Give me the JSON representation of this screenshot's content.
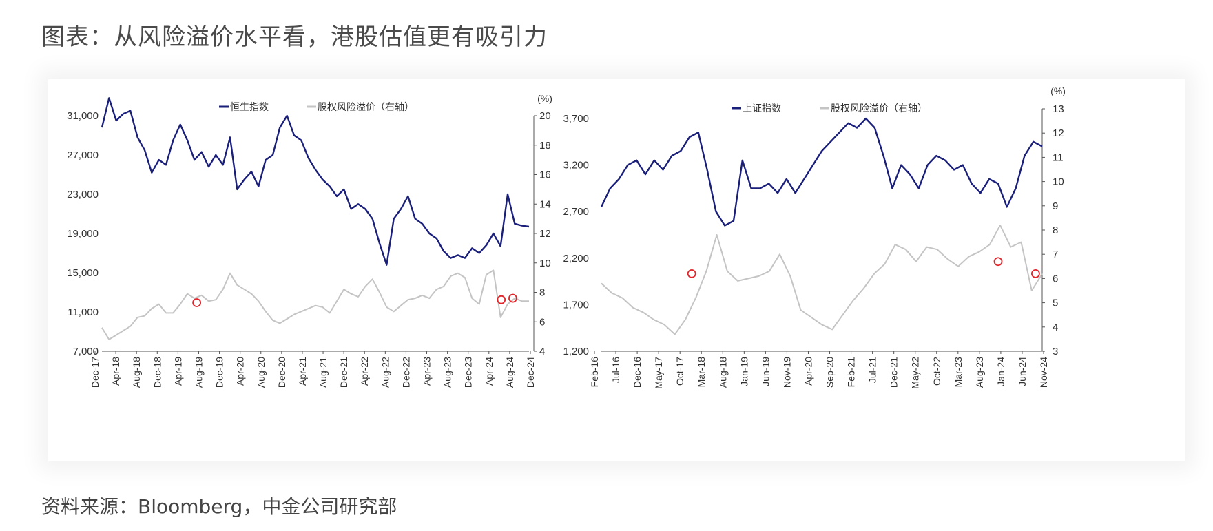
{
  "title": "图表：从风险溢价水平看，港股估值更有吸引力",
  "source": "资料来源：Bloomberg，中金公司研究部",
  "colors": {
    "index": "#1a1f7a",
    "erp": "#c4c4c4",
    "marker": "#e0262b"
  },
  "chart_data": [
    {
      "type": "line",
      "title": "",
      "x_ticks": [
        "Dec-17",
        "Apr-18",
        "Aug-18",
        "Dec-18",
        "Apr-19",
        "Aug-19",
        "Dec-19",
        "Apr-20",
        "Aug-20",
        "Dec-20",
        "Apr-21",
        "Aug-21",
        "Dec-21",
        "Apr-22",
        "Aug-22",
        "Dec-22",
        "Apr-23",
        "Aug-23",
        "Dec-23",
        "Apr-24",
        "Aug-24",
        "Dec-24"
      ],
      "y_left": {
        "range": [
          7000,
          31000
        ],
        "ticks": [
          "7,000",
          "11,000",
          "15,000",
          "19,000",
          "23,000",
          "27,000",
          "31,000"
        ]
      },
      "y_right": {
        "unit": "(%)",
        "range": [
          4,
          20
        ],
        "ticks": [
          "4",
          "6",
          "8",
          "10",
          "12",
          "14",
          "16",
          "18",
          "20"
        ]
      },
      "legend": {
        "placement": "top",
        "entries": [
          "恒生指数",
          "股权风险溢价（右轴）"
        ]
      },
      "series": [
        {
          "name": "恒生指数",
          "axis": "left",
          "color": "#1a1f7a",
          "values": [
            29800,
            32800,
            30500,
            31200,
            31500,
            28800,
            27500,
            25200,
            26500,
            26000,
            28500,
            30100,
            28500,
            26500,
            27300,
            25800,
            27000,
            26000,
            28800,
            23500,
            24500,
            25300,
            23800,
            26500,
            27000,
            29800,
            31000,
            29000,
            28500,
            26700,
            25500,
            24500,
            23800,
            22800,
            23500,
            21500,
            22000,
            21500,
            20500,
            18000,
            15800,
            20500,
            21500,
            22800,
            20500,
            20000,
            19000,
            18500,
            17200,
            16500,
            16800,
            16500,
            17500,
            17000,
            17800,
            19000,
            17700,
            23000,
            20000,
            19800,
            19700
          ]
        },
        {
          "name": "股权风险溢价（右轴）",
          "axis": "right",
          "color": "#c4c4c4",
          "values": [
            5.6,
            4.8,
            5.1,
            5.4,
            5.7,
            6.3,
            6.4,
            6.9,
            7.2,
            6.6,
            6.6,
            7.2,
            7.9,
            7.6,
            7.8,
            7.4,
            7.5,
            8.2,
            9.3,
            8.5,
            8.2,
            7.9,
            7.4,
            6.7,
            6.1,
            5.9,
            6.2,
            6.5,
            6.7,
            6.9,
            7.1,
            7.0,
            6.6,
            7.4,
            8.2,
            7.9,
            7.7,
            8.4,
            8.9,
            8.0,
            7.0,
            6.7,
            7.1,
            7.5,
            7.6,
            7.8,
            7.6,
            8.2,
            8.4,
            9.1,
            9.3,
            9.0,
            7.6,
            7.2,
            9.2,
            9.5,
            6.3,
            7.2,
            7.6,
            7.4,
            7.4
          ]
        },
        {
          "name": "",
          "axis": "right",
          "type": "markers",
          "color": "#e0262b",
          "points": [
            [
              0.222,
              7.3
            ],
            [
              0.935,
              7.5
            ],
            [
              0.962,
              7.6
            ]
          ]
        }
      ]
    },
    {
      "type": "line",
      "title": "",
      "x_ticks": [
        "Feb-16",
        "Jul-16",
        "Dec-16",
        "May-17",
        "Oct-17",
        "Mar-18",
        "Aug-18",
        "Jan-19",
        "Jun-19",
        "Nov-19",
        "Apr-20",
        "Sep-20",
        "Feb-21",
        "Jul-21",
        "Dec-21",
        "May-22",
        "Oct-22",
        "Mar-23",
        "Aug-23",
        "Jan-24",
        "Jun-24",
        "Nov-24"
      ],
      "y_left": {
        "range": [
          1200,
          3700
        ],
        "ticks": [
          "1,200",
          "1,700",
          "2,200",
          "2,700",
          "3,200",
          "3,700"
        ]
      },
      "y_right": {
        "unit": "(%)",
        "range": [
          3,
          13
        ],
        "ticks": [
          "3",
          "4",
          "5",
          "6",
          "7",
          "8",
          "9",
          "10",
          "11",
          "12",
          "13"
        ]
      },
      "legend": {
        "placement": "top",
        "entries": [
          "上证指数",
          "股权风险溢价（右轴）"
        ]
      },
      "series": [
        {
          "name": "上证指数",
          "axis": "left",
          "color": "#1a1f7a",
          "values": [
            2750,
            2950,
            3050,
            3200,
            3250,
            3100,
            3250,
            3150,
            3300,
            3350,
            3500,
            3550,
            3150,
            2700,
            2550,
            2600,
            3250,
            2950,
            2950,
            3000,
            2900,
            3050,
            2900,
            3050,
            3200,
            3350,
            3450,
            3550,
            3650,
            3600,
            3700,
            3600,
            3300,
            2950,
            3200,
            3100,
            2950,
            3200,
            3300,
            3250,
            3150,
            3200,
            3000,
            2900,
            3050,
            3000,
            2750,
            2950,
            3300,
            3450,
            3400
          ]
        },
        {
          "name": "股权风险溢价（右轴）",
          "axis": "right",
          "color": "#c4c4c4",
          "values": [
            5.8,
            5.4,
            5.2,
            4.8,
            4.6,
            4.3,
            4.1,
            3.7,
            4.3,
            5.2,
            6.3,
            7.8,
            6.3,
            5.9,
            6.0,
            6.1,
            6.3,
            7.0,
            6.1,
            4.7,
            4.4,
            4.1,
            3.9,
            4.5,
            5.1,
            5.6,
            6.2,
            6.6,
            7.4,
            7.2,
            6.7,
            7.3,
            7.2,
            6.8,
            6.5,
            6.9,
            7.1,
            7.4,
            8.2,
            7.3,
            7.5,
            5.5,
            6.2
          ]
        },
        {
          "name": "",
          "axis": "right",
          "type": "markers",
          "color": "#e0262b",
          "points": [
            [
              0.205,
              6.2
            ],
            [
              0.9,
              6.7
            ],
            [
              0.985,
              6.2
            ]
          ]
        }
      ]
    }
  ]
}
